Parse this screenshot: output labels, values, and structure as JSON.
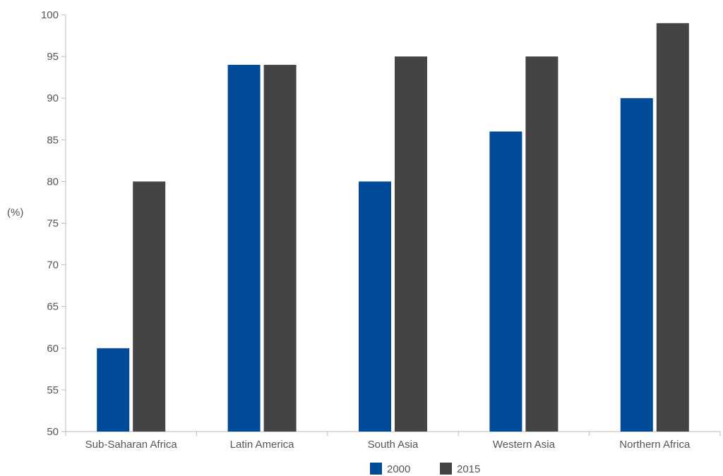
{
  "chart_data": {
    "type": "bar",
    "ylabel": "(%)",
    "ylim": [
      50,
      100
    ],
    "yticks": [
      50,
      55,
      60,
      65,
      70,
      75,
      80,
      85,
      90,
      95,
      100
    ],
    "categories": [
      "Sub-Saharan Africa",
      "Latin America",
      "South Asia",
      "Western Asia",
      "Northern Africa"
    ],
    "series": [
      {
        "name": "2000",
        "color": "#004a97",
        "values": [
          60,
          94,
          80,
          86,
          90
        ]
      },
      {
        "name": "2015",
        "color": "#444444",
        "values": [
          80,
          94,
          95,
          95,
          99
        ]
      }
    ],
    "legend": "bottom-center",
    "grid": false
  }
}
